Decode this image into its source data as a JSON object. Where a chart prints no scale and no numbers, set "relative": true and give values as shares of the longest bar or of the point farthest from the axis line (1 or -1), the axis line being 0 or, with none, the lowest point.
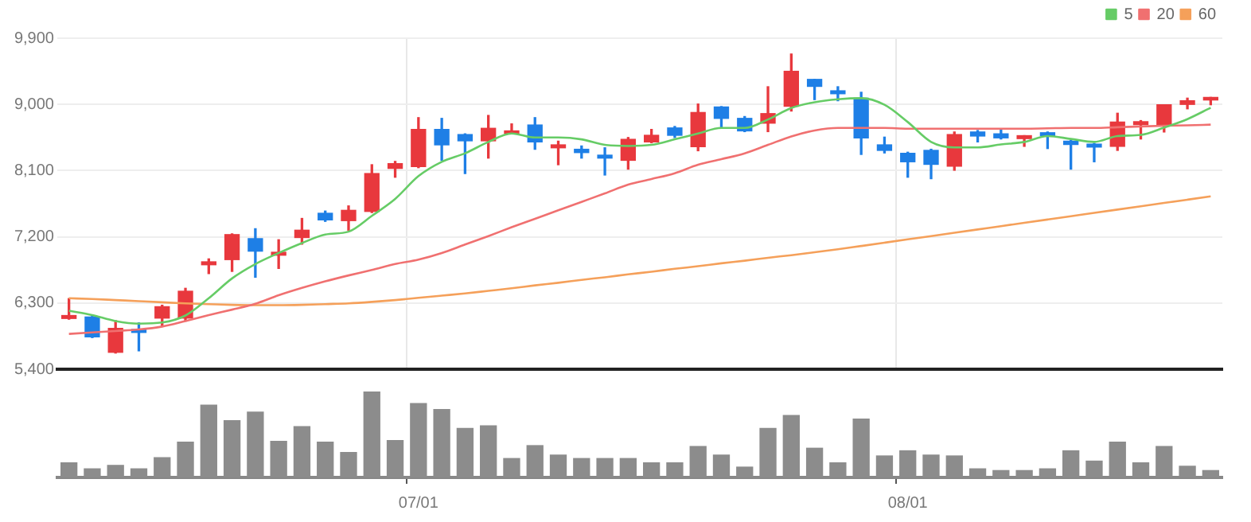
{
  "chart_data": [
    {
      "type": "candlestick",
      "categories": [
        null,
        null,
        null,
        null,
        null,
        null,
        null,
        null,
        null,
        null,
        null,
        null,
        null,
        null,
        null,
        null,
        null,
        null,
        null,
        null,
        null,
        null,
        null,
        null,
        null,
        null,
        null,
        null,
        null,
        null,
        null,
        null,
        null,
        null,
        null,
        null,
        null,
        null,
        null,
        null,
        null,
        null,
        null,
        null,
        null,
        null,
        null,
        null,
        null,
        null
      ],
      "ohlc": [
        [
          6090,
          6360,
          6080,
          6130
        ],
        [
          6110,
          6120,
          5830,
          5840
        ],
        [
          5630,
          6060,
          5620,
          5955
        ],
        [
          5940,
          6030,
          5650,
          5900
        ],
        [
          6095,
          6270,
          5980,
          6250
        ],
        [
          6095,
          6500,
          6055,
          6460
        ],
        [
          6820,
          6900,
          6700,
          6860
        ],
        [
          6890,
          7240,
          6730,
          7230
        ],
        [
          7175,
          7310,
          6650,
          7005
        ],
        [
          6950,
          7160,
          6770,
          6990
        ],
        [
          7190,
          7450,
          7100,
          7290
        ],
        [
          7520,
          7550,
          7410,
          7430
        ],
        [
          7420,
          7620,
          7290,
          7560
        ],
        [
          7545,
          8180,
          7530,
          8060
        ],
        [
          8130,
          8225,
          8010,
          8195
        ],
        [
          8155,
          8820,
          8140,
          8660
        ],
        [
          8660,
          8810,
          8240,
          8450
        ],
        [
          8590,
          8600,
          8060,
          8505
        ],
        [
          8505,
          8850,
          8270,
          8675
        ],
        [
          8605,
          8735,
          8600,
          8640
        ],
        [
          8720,
          8820,
          8390,
          8490
        ],
        [
          8410,
          8500,
          8180,
          8450
        ],
        [
          8390,
          8435,
          8270,
          8345
        ],
        [
          8310,
          8410,
          8040,
          8270
        ],
        [
          8240,
          8550,
          8120,
          8525
        ],
        [
          8490,
          8660,
          8480,
          8580
        ],
        [
          8680,
          8700,
          8550,
          8580
        ],
        [
          8425,
          9005,
          8370,
          8890
        ],
        [
          8965,
          8970,
          8680,
          8810
        ],
        [
          8810,
          8835,
          8630,
          8640
        ],
        [
          8745,
          9240,
          8630,
          8875
        ],
        [
          8975,
          9685,
          8910,
          9450
        ],
        [
          9340,
          9340,
          9065,
          9245
        ],
        [
          9185,
          9240,
          9050,
          9145
        ],
        [
          9085,
          9165,
          8320,
          8545
        ],
        [
          8450,
          8555,
          8340,
          8375
        ],
        [
          8335,
          8350,
          8010,
          8220
        ],
        [
          8375,
          8390,
          7990,
          8185
        ],
        [
          8160,
          8625,
          8105,
          8590
        ],
        [
          8625,
          8645,
          8490,
          8570
        ],
        [
          8600,
          8660,
          8530,
          8545
        ],
        [
          8535,
          8575,
          8430,
          8575
        ],
        [
          8615,
          8625,
          8400,
          8575
        ],
        [
          8500,
          8510,
          8120,
          8455
        ],
        [
          8460,
          8470,
          8220,
          8420
        ],
        [
          8430,
          8880,
          8375,
          8760
        ],
        [
          8725,
          8780,
          8530,
          8765
        ],
        [
          8710,
          8995,
          8625,
          8995
        ],
        [
          9000,
          9085,
          8940,
          9050
        ],
        [
          9060,
          9095,
          8995,
          9095
        ]
      ],
      "colors": [
        "#e8383d",
        "#1e7fe6",
        "#e8383d",
        "#1e7fe6",
        "#e8383d",
        "#e8383d",
        "#e8383d",
        "#e8383d",
        "#1e7fe6",
        "#e8383d",
        "#e8383d",
        "#1e7fe6",
        "#e8383d",
        "#e8383d",
        "#e8383d",
        "#e8383d",
        "#1e7fe6",
        "#1e7fe6",
        "#e8383d",
        "#e8383d",
        "#1e7fe6",
        "#e8383d",
        "#1e7fe6",
        "#1e7fe6",
        "#e8383d",
        "#e8383d",
        "#1e7fe6",
        "#e8383d",
        "#1e7fe6",
        "#1e7fe6",
        "#e8383d",
        "#e8383d",
        "#1e7fe6",
        "#1e7fe6",
        "#1e7fe6",
        "#1e7fe6",
        "#1e7fe6",
        "#1e7fe6",
        "#e8383d",
        "#1e7fe6",
        "#1e7fe6",
        "#e8383d",
        "#1e7fe6",
        "#1e7fe6",
        "#1e7fe6",
        "#e8383d",
        "#e8383d",
        "#e8383d",
        "#e8383d",
        "#e8383d"
      ],
      "series": [
        {
          "name": "5",
          "type": "line",
          "color": "#66cc66",
          "values": [
            6195,
            6135,
            6055,
            6020,
            6035,
            6130,
            6365,
            6635,
            6830,
            6980,
            7115,
            7230,
            7270,
            7485,
            7715,
            8025,
            8220,
            8335,
            8490,
            8605,
            8550,
            8550,
            8525,
            8450,
            8435,
            8450,
            8525,
            8605,
            8680,
            8680,
            8795,
            8950,
            9030,
            9070,
            9085,
            8995,
            8760,
            8490,
            8415,
            8415,
            8455,
            8490,
            8570,
            8530,
            8490,
            8570,
            8585,
            8685,
            8800,
            8955
          ]
        },
        {
          "name": "20",
          "type": "line",
          "color": "#f07070",
          "values": [
            5880,
            5900,
            5920,
            5940,
            5980,
            6055,
            6135,
            6210,
            6290,
            6405,
            6505,
            6595,
            6675,
            6750,
            6830,
            6890,
            6980,
            7095,
            7210,
            7330,
            7445,
            7560,
            7675,
            7790,
            7910,
            7985,
            8065,
            8180,
            8255,
            8335,
            8450,
            8565,
            8645,
            8680,
            8680,
            8680,
            8670,
            8670,
            8670,
            8670,
            8670,
            8670,
            8675,
            8680,
            8680,
            8690,
            8700,
            8710,
            8715,
            8725
          ]
        },
        {
          "name": "60",
          "type": "line",
          "color": "#f5a05a",
          "values": [
            6365,
            6355,
            6340,
            6325,
            6310,
            6295,
            6285,
            6275,
            6270,
            6270,
            6275,
            6285,
            6295,
            6315,
            6340,
            6370,
            6400,
            6430,
            6465,
            6500,
            6540,
            6575,
            6615,
            6650,
            6690,
            6725,
            6765,
            6800,
            6840,
            6875,
            6915,
            6950,
            6990,
            7030,
            7075,
            7120,
            7165,
            7210,
            7255,
            7300,
            7345,
            7390,
            7435,
            7480,
            7525,
            7570,
            7615,
            7660,
            7705,
            7750
          ]
        }
      ],
      "ylim": [
        5400,
        9900
      ],
      "yticks": [
        {
          "value": 5400,
          "label": "5,400"
        },
        {
          "value": 6300,
          "label": "6,300"
        },
        {
          "value": 7200,
          "label": "7,200"
        },
        {
          "value": 8100,
          "label": "8,100"
        },
        {
          "value": 9000,
          "label": "9,000"
        },
        {
          "value": 9900,
          "label": "9,900"
        }
      ],
      "grid": true,
      "legend": "top right",
      "tick_labels": "y"
    },
    {
      "type": "bar",
      "relative": true,
      "color": "#8c8c8c",
      "categories": [
        null,
        null,
        null,
        null,
        null,
        null,
        null,
        null,
        null,
        null,
        null,
        null,
        null,
        null,
        null,
        "07/01",
        null,
        null,
        null,
        null,
        null,
        null,
        null,
        null,
        null,
        null,
        null,
        null,
        null,
        null,
        null,
        null,
        null,
        null,
        null,
        null,
        "08/01",
        null,
        null,
        null,
        null,
        null,
        null,
        null,
        null,
        null,
        null,
        null,
        null,
        null
      ],
      "values": [
        0.17,
        0.1,
        0.14,
        0.1,
        0.23,
        0.41,
        0.84,
        0.66,
        0.76,
        0.42,
        0.59,
        0.41,
        0.29,
        1,
        0.43,
        0.86,
        0.79,
        0.57,
        0.6,
        0.22,
        0.37,
        0.26,
        0.22,
        0.22,
        0.22,
        0.17,
        0.17,
        0.36,
        0.26,
        0.12,
        0.57,
        0.72,
        0.34,
        0.17,
        0.68,
        0.25,
        0.31,
        0.26,
        0.25,
        0.1,
        0.08,
        0.08,
        0.1,
        0.31,
        0.19,
        0.41,
        0.17,
        0.36,
        0.13,
        0.08
      ]
    }
  ]
}
